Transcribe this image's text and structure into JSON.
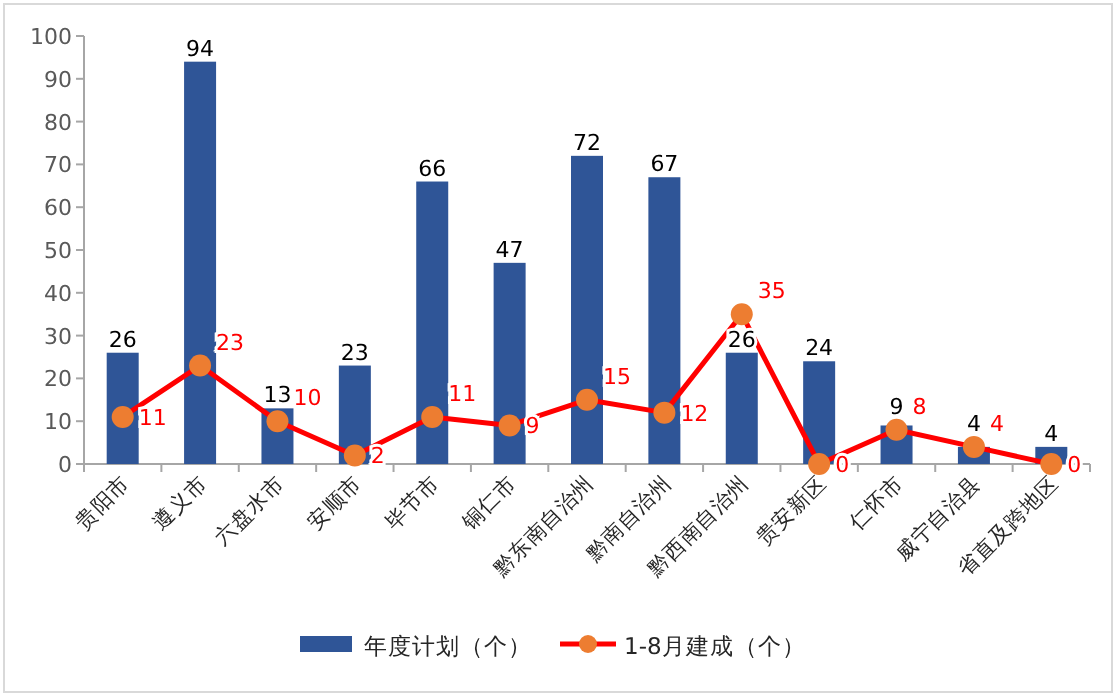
{
  "chart_data": {
    "type": "bar",
    "categories": [
      "贵阳市",
      "遵义市",
      "六盘水市",
      "安顺市",
      "毕节市",
      "铜仁市",
      "黔东南自治州",
      "黔南自治州",
      "黔西南自治州",
      "贵安新区",
      "仁怀市",
      "威宁自治县",
      "省直及跨地区"
    ],
    "series": [
      {
        "name": "年度计划（个）",
        "color": "#2f5597",
        "values": [
          26,
          94,
          13,
          23,
          66,
          47,
          72,
          67,
          26,
          24,
          9,
          4,
          4
        ]
      },
      {
        "name": "1-8月建成（个）",
        "type": "line",
        "color": "#ff0000",
        "marker": "circle",
        "values": [
          11,
          23,
          10,
          2,
          11,
          9,
          15,
          12,
          35,
          0,
          8,
          4,
          0
        ]
      }
    ],
    "ylim": [
      0,
      100
    ],
    "yticks": [
      0,
      10,
      20,
      30,
      40,
      50,
      60,
      70,
      80,
      90,
      100
    ],
    "data_labels": true,
    "legend": "bottom",
    "grid": false
  }
}
